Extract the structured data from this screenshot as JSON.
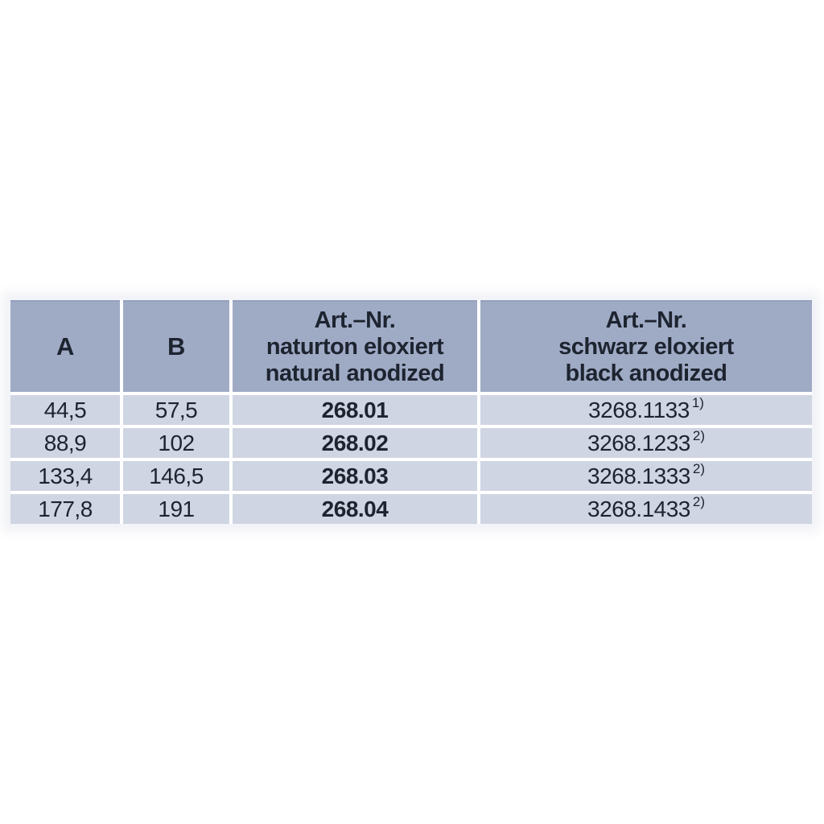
{
  "colors": {
    "header_bg": "#9fabc5",
    "row_bg": "#cfd5e2",
    "text": "#1d2430",
    "separator": "#ffffff"
  },
  "table": {
    "headers": {
      "col_a": "A",
      "col_b": "B",
      "col_natural_lines": [
        "Art.–Nr.",
        "naturton eloxiert",
        "natural anodized"
      ],
      "col_black_lines": [
        "Art.–Nr.",
        "schwarz eloxiert",
        "black anodized"
      ]
    },
    "rows": [
      {
        "a": "44,5",
        "b": "57,5",
        "art_natural": "268.01",
        "art_black": "3268.1133",
        "note": "1)"
      },
      {
        "a": "88,9",
        "b": "102",
        "art_natural": "268.02",
        "art_black": "3268.1233",
        "note": "2)"
      },
      {
        "a": "133,4",
        "b": "146,5",
        "art_natural": "268.03",
        "art_black": "3268.1333",
        "note": "2)"
      },
      {
        "a": "177,8",
        "b": "191",
        "art_natural": "268.04",
        "art_black": "3268.1433",
        "note": "2)"
      }
    ]
  }
}
